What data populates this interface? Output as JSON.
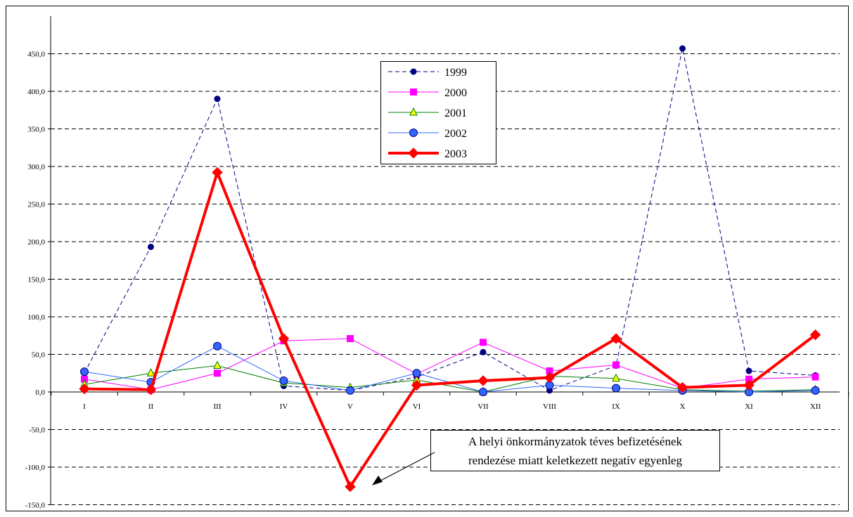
{
  "chart_data": {
    "type": "line",
    "categories": [
      "I",
      "II",
      "III",
      "IV",
      "V",
      "VI",
      "VII",
      "VIII",
      "IX",
      "X",
      "XI",
      "XII"
    ],
    "ylim": [
      -150,
      450
    ],
    "y_ticks": [
      "450,0",
      "400,0",
      "350,0",
      "300,0",
      "250,0",
      "200,0",
      "150,0",
      "100,0",
      "50,0",
      "0,0",
      "-50,0",
      "-100,0",
      "-150,0"
    ],
    "y_tick_values": [
      450,
      400,
      350,
      300,
      250,
      200,
      150,
      100,
      50,
      0,
      -50,
      -100,
      -150
    ],
    "grid": "horizontal dashed",
    "legend_position": "top-center",
    "series": [
      {
        "name": "1999",
        "values": [
          25,
          193,
          390,
          8,
          2,
          20,
          53,
          2,
          35,
          457,
          28,
          22
        ],
        "color": "#000080",
        "style": "dashed",
        "marker": "dot"
      },
      {
        "name": "2000",
        "values": [
          17,
          3,
          25,
          68,
          71,
          24,
          66,
          28,
          36,
          5,
          17,
          20
        ],
        "color": "#ff00ff",
        "style": "solid",
        "marker": "square"
      },
      {
        "name": "2001",
        "values": [
          10,
          25,
          35,
          12,
          6,
          16,
          0,
          21,
          18,
          3,
          1,
          3
        ],
        "color": "#008000",
        "style": "solid",
        "marker": "triangle"
      },
      {
        "name": "2002",
        "values": [
          27,
          13,
          61,
          15,
          2,
          25,
          0,
          9,
          5,
          2,
          0,
          2
        ],
        "color": "#3366ff",
        "style": "solid",
        "marker": "circle"
      },
      {
        "name": "2003",
        "values": [
          4,
          3,
          292,
          71,
          -126,
          9,
          15,
          19,
          71,
          6,
          9,
          76
        ],
        "color": "#ff0000",
        "style": "thick",
        "marker": "diamond"
      }
    ],
    "annotation": {
      "lines": [
        "A helyi önkormányzatok téves befizetésének",
        "rendezése  miatt keletkezett negatív egyenleg"
      ],
      "points_to": {
        "category": "V",
        "value": -126
      }
    }
  }
}
